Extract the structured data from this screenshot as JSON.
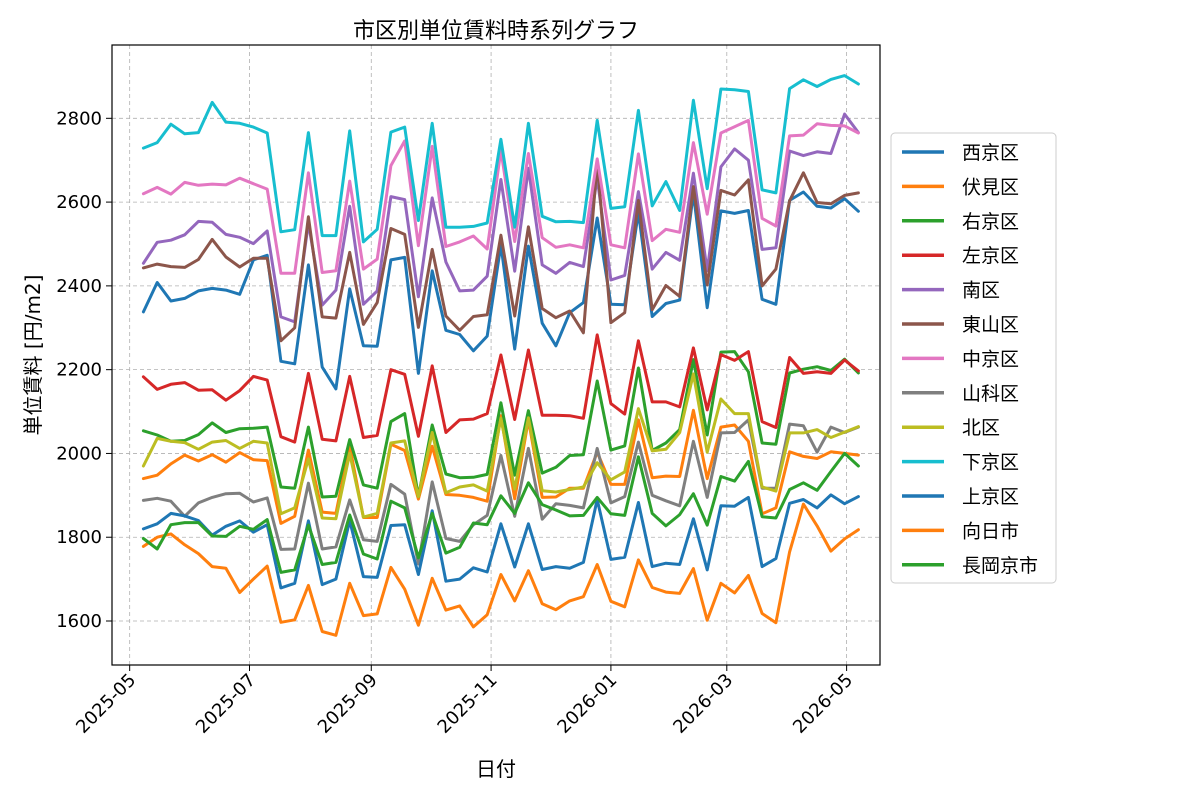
{
  "chart_data": {
    "type": "line",
    "title": "市区別単位賃料時系列グラフ",
    "xlabel": "日付",
    "ylabel": "単位賃料 [円/m2]",
    "x_tick_labels": [
      "2025-05",
      "2025-07",
      "2025-09",
      "2025-11",
      "2026-01",
      "2026-03",
      "2026-05"
    ],
    "y_tick_labels": [
      "1600",
      "1800",
      "2000",
      "2200",
      "2400",
      "2600",
      "2800"
    ],
    "ylim": [
      1495,
      2975
    ],
    "grid": true,
    "legend_position": "center right outside",
    "x": [
      "2025-05-08",
      "2025-05-15",
      "2025-05-22",
      "2025-05-29",
      "2025-06-05",
      "2025-06-12",
      "2025-06-19",
      "2025-06-26",
      "2025-07-03",
      "2025-07-10",
      "2025-07-17",
      "2025-07-24",
      "2025-07-31",
      "2025-08-07",
      "2025-08-14",
      "2025-08-21",
      "2025-08-28",
      "2025-09-04",
      "2025-09-11",
      "2025-09-18",
      "2025-09-25",
      "2025-10-02",
      "2025-10-09",
      "2025-10-16",
      "2025-10-23",
      "2025-10-30",
      "2025-11-06",
      "2025-11-13",
      "2025-11-20",
      "2025-11-27",
      "2025-12-04",
      "2025-12-11",
      "2025-12-18",
      "2025-12-25",
      "2026-01-01",
      "2026-01-08",
      "2026-01-15",
      "2026-01-22",
      "2026-01-29",
      "2026-02-05",
      "2026-02-12",
      "2026-02-19",
      "2026-02-26",
      "2026-03-05",
      "2026-03-12",
      "2026-03-19",
      "2026-03-26",
      "2026-04-02",
      "2026-04-09",
      "2026-04-16",
      "2026-04-23",
      "2026-04-30",
      "2026-05-07"
    ],
    "series": [
      {
        "name": "西京区",
        "color": "#1f77b4",
        "values": [
          2338,
          2408,
          2364,
          2370,
          2388,
          2394,
          2390,
          2380,
          2462,
          2473,
          2220,
          2214,
          2450,
          2206,
          2154,
          2393,
          2257,
          2256,
          2462,
          2468,
          2191,
          2436,
          2294,
          2284,
          2245,
          2280,
          2498,
          2249,
          2495,
          2311,
          2257,
          2336,
          2360,
          2562,
          2356,
          2355,
          2576,
          2327,
          2358,
          2366,
          2622,
          2348,
          2579,
          2573,
          2580,
          2368,
          2356,
          2604,
          2624,
          2590,
          2586,
          2608,
          2578
        ]
      },
      {
        "name": "伏見区",
        "color": "#ff7f0e",
        "values": [
          1940,
          1948,
          1975,
          1996,
          1982,
          1997,
          1979,
          2002,
          1985,
          1983,
          1833,
          1850,
          2008,
          1860,
          1857,
          2018,
          1847,
          1847,
          2022,
          2007,
          1891,
          2017,
          1902,
          1900,
          1895,
          1886,
          2090,
          1892,
          2080,
          1895,
          1896,
          1917,
          1917,
          2003,
          1926,
          1926,
          2080,
          1942,
          1946,
          1945,
          2103,
          1940,
          2063,
          2068,
          2029,
          1856,
          1870,
          2004,
          1993,
          1988,
          2004,
          2000,
          1996
        ]
      },
      {
        "name": "右京区",
        "color": "#2ca02c",
        "values": [
          2054,
          2044,
          2029,
          2031,
          2045,
          2073,
          2050,
          2059,
          2060,
          2063,
          1920,
          1917,
          2063,
          1896,
          1898,
          2033,
          1925,
          1917,
          2076,
          2095,
          1897,
          2068,
          1951,
          1942,
          1943,
          1950,
          2121,
          1948,
          2102,
          1953,
          1967,
          1995,
          1997,
          2173,
          2008,
          2018,
          2204,
          2007,
          2025,
          2057,
          2224,
          2044,
          2242,
          2243,
          2195,
          2025,
          2022,
          2192,
          2201,
          2207,
          2198,
          2225,
          2192
        ]
      },
      {
        "name": "左京区",
        "color": "#d62728",
        "values": [
          2183,
          2153,
          2165,
          2169,
          2151,
          2152,
          2127,
          2150,
          2184,
          2175,
          2040,
          2027,
          2191,
          2034,
          2030,
          2184,
          2038,
          2043,
          2200,
          2189,
          2041,
          2209,
          2050,
          2080,
          2082,
          2095,
          2235,
          2081,
          2247,
          2091,
          2091,
          2090,
          2084,
          2283,
          2119,
          2094,
          2269,
          2123,
          2123,
          2111,
          2252,
          2104,
          2236,
          2222,
          2243,
          2076,
          2062,
          2229,
          2191,
          2195,
          2191,
          2223,
          2197
        ]
      },
      {
        "name": "南区",
        "color": "#9467bd",
        "values": [
          2454,
          2504,
          2509,
          2522,
          2554,
          2552,
          2523,
          2516,
          2501,
          2531,
          2326,
          2314,
          2550,
          2354,
          2390,
          2590,
          2356,
          2388,
          2613,
          2606,
          2374,
          2610,
          2457,
          2388,
          2390,
          2423,
          2654,
          2435,
          2681,
          2450,
          2430,
          2456,
          2446,
          2657,
          2414,
          2425,
          2625,
          2440,
          2480,
          2461,
          2669,
          2436,
          2684,
          2727,
          2700,
          2487,
          2491,
          2722,
          2711,
          2720,
          2716,
          2810,
          2766
        ]
      },
      {
        "name": "東山区",
        "color": "#8c564b",
        "values": [
          2443,
          2452,
          2446,
          2444,
          2463,
          2511,
          2469,
          2445,
          2466,
          2466,
          2269,
          2300,
          2565,
          2326,
          2323,
          2480,
          2308,
          2360,
          2537,
          2523,
          2301,
          2487,
          2328,
          2294,
          2327,
          2331,
          2521,
          2328,
          2541,
          2346,
          2324,
          2340,
          2288,
          2695,
          2312,
          2336,
          2604,
          2343,
          2401,
          2375,
          2637,
          2402,
          2628,
          2617,
          2653,
          2400,
          2440,
          2603,
          2670,
          2599,
          2596,
          2616,
          2622
        ]
      },
      {
        "name": "中京区",
        "color": "#e377c2",
        "values": [
          2620,
          2635,
          2619,
          2647,
          2640,
          2643,
          2641,
          2657,
          2644,
          2631,
          2430,
          2430,
          2670,
          2432,
          2436,
          2650,
          2440,
          2464,
          2687,
          2746,
          2496,
          2733,
          2494,
          2505,
          2519,
          2488,
          2724,
          2506,
          2716,
          2515,
          2492,
          2498,
          2491,
          2703,
          2498,
          2491,
          2715,
          2508,
          2535,
          2528,
          2742,
          2571,
          2765,
          2780,
          2795,
          2561,
          2543,
          2758,
          2760,
          2787,
          2783,
          2782,
          2765
        ]
      },
      {
        "name": "山科区",
        "color": "#7f7f7f",
        "values": [
          1888,
          1893,
          1886,
          1850,
          1882,
          1895,
          1904,
          1905,
          1884,
          1894,
          1771,
          1772,
          1929,
          1772,
          1777,
          1889,
          1794,
          1790,
          1926,
          1903,
          1736,
          1932,
          1797,
          1790,
          1830,
          1852,
          1995,
          1850,
          2012,
          1843,
          1880,
          1876,
          1870,
          2012,
          1882,
          1897,
          2027,
          1900,
          1887,
          1875,
          2029,
          1895,
          2049,
          2050,
          2080,
          1917,
          1917,
          2070,
          2066,
          2003,
          2063,
          2050,
          2063
        ]
      },
      {
        "name": "北区",
        "color": "#bcbd22",
        "values": [
          1970,
          2036,
          2029,
          2026,
          2010,
          2027,
          2031,
          2012,
          2029,
          2025,
          1856,
          1870,
          1987,
          1846,
          1844,
          2000,
          1848,
          1857,
          2025,
          2030,
          1897,
          2050,
          1906,
          1920,
          1925,
          1910,
          2084,
          1915,
          2085,
          1911,
          1908,
          1914,
          1920,
          1978,
          1937,
          1956,
          2107,
          2006,
          2010,
          2050,
          2190,
          2003,
          2130,
          2095,
          2095,
          1920,
          1910,
          2049,
          2049,
          2057,
          2038,
          2051,
          2064
        ]
      },
      {
        "name": "下京区",
        "color": "#17becf",
        "values": [
          2729,
          2742,
          2786,
          2763,
          2766,
          2838,
          2791,
          2788,
          2779,
          2765,
          2529,
          2534,
          2766,
          2520,
          2520,
          2770,
          2505,
          2535,
          2767,
          2779,
          2556,
          2788,
          2540,
          2540,
          2542,
          2550,
          2750,
          2540,
          2788,
          2566,
          2553,
          2554,
          2551,
          2795,
          2585,
          2589,
          2819,
          2591,
          2649,
          2580,
          2843,
          2632,
          2870,
          2868,
          2864,
          2629,
          2622,
          2871,
          2892,
          2876,
          2893,
          2902,
          2882
        ]
      },
      {
        "name": "上京区",
        "color": "#1f77b4",
        "values": [
          1820,
          1832,
          1857,
          1851,
          1840,
          1805,
          1826,
          1839,
          1812,
          1830,
          1679,
          1690,
          1839,
          1687,
          1700,
          1840,
          1706,
          1704,
          1828,
          1830,
          1711,
          1863,
          1695,
          1700,
          1727,
          1717,
          1832,
          1729,
          1832,
          1723,
          1730,
          1726,
          1740,
          1890,
          1747,
          1752,
          1883,
          1730,
          1738,
          1735,
          1844,
          1722,
          1875,
          1874,
          1895,
          1730,
          1749,
          1881,
          1890,
          1870,
          1901,
          1880,
          1897
        ]
      },
      {
        "name": "向日市",
        "color": "#ff7f0e",
        "values": [
          1778,
          1800,
          1808,
          1782,
          1761,
          1730,
          1726,
          1668,
          1700,
          1731,
          1597,
          1603,
          1685,
          1575,
          1566,
          1690,
          1613,
          1617,
          1728,
          1676,
          1590,
          1702,
          1626,
          1636,
          1586,
          1615,
          1711,
          1648,
          1720,
          1641,
          1627,
          1648,
          1658,
          1735,
          1647,
          1634,
          1746,
          1680,
          1669,
          1666,
          1725,
          1602,
          1690,
          1667,
          1709,
          1618,
          1596,
          1765,
          1879,
          1827,
          1767,
          1796,
          1818
        ]
      },
      {
        "name": "長岡京市",
        "color": "#2ca02c",
        "values": [
          1797,
          1772,
          1830,
          1835,
          1835,
          1803,
          1802,
          1826,
          1819,
          1842,
          1716,
          1722,
          1829,
          1735,
          1740,
          1853,
          1760,
          1748,
          1886,
          1870,
          1751,
          1857,
          1762,
          1776,
          1834,
          1830,
          1899,
          1857,
          1930,
          1878,
          1865,
          1851,
          1852,
          1895,
          1856,
          1852,
          1992,
          1857,
          1827,
          1854,
          1904,
          1829,
          1945,
          1934,
          1981,
          1849,
          1846,
          1914,
          1930,
          1912,
          1957,
          2000,
          1970
        ]
      }
    ]
  }
}
